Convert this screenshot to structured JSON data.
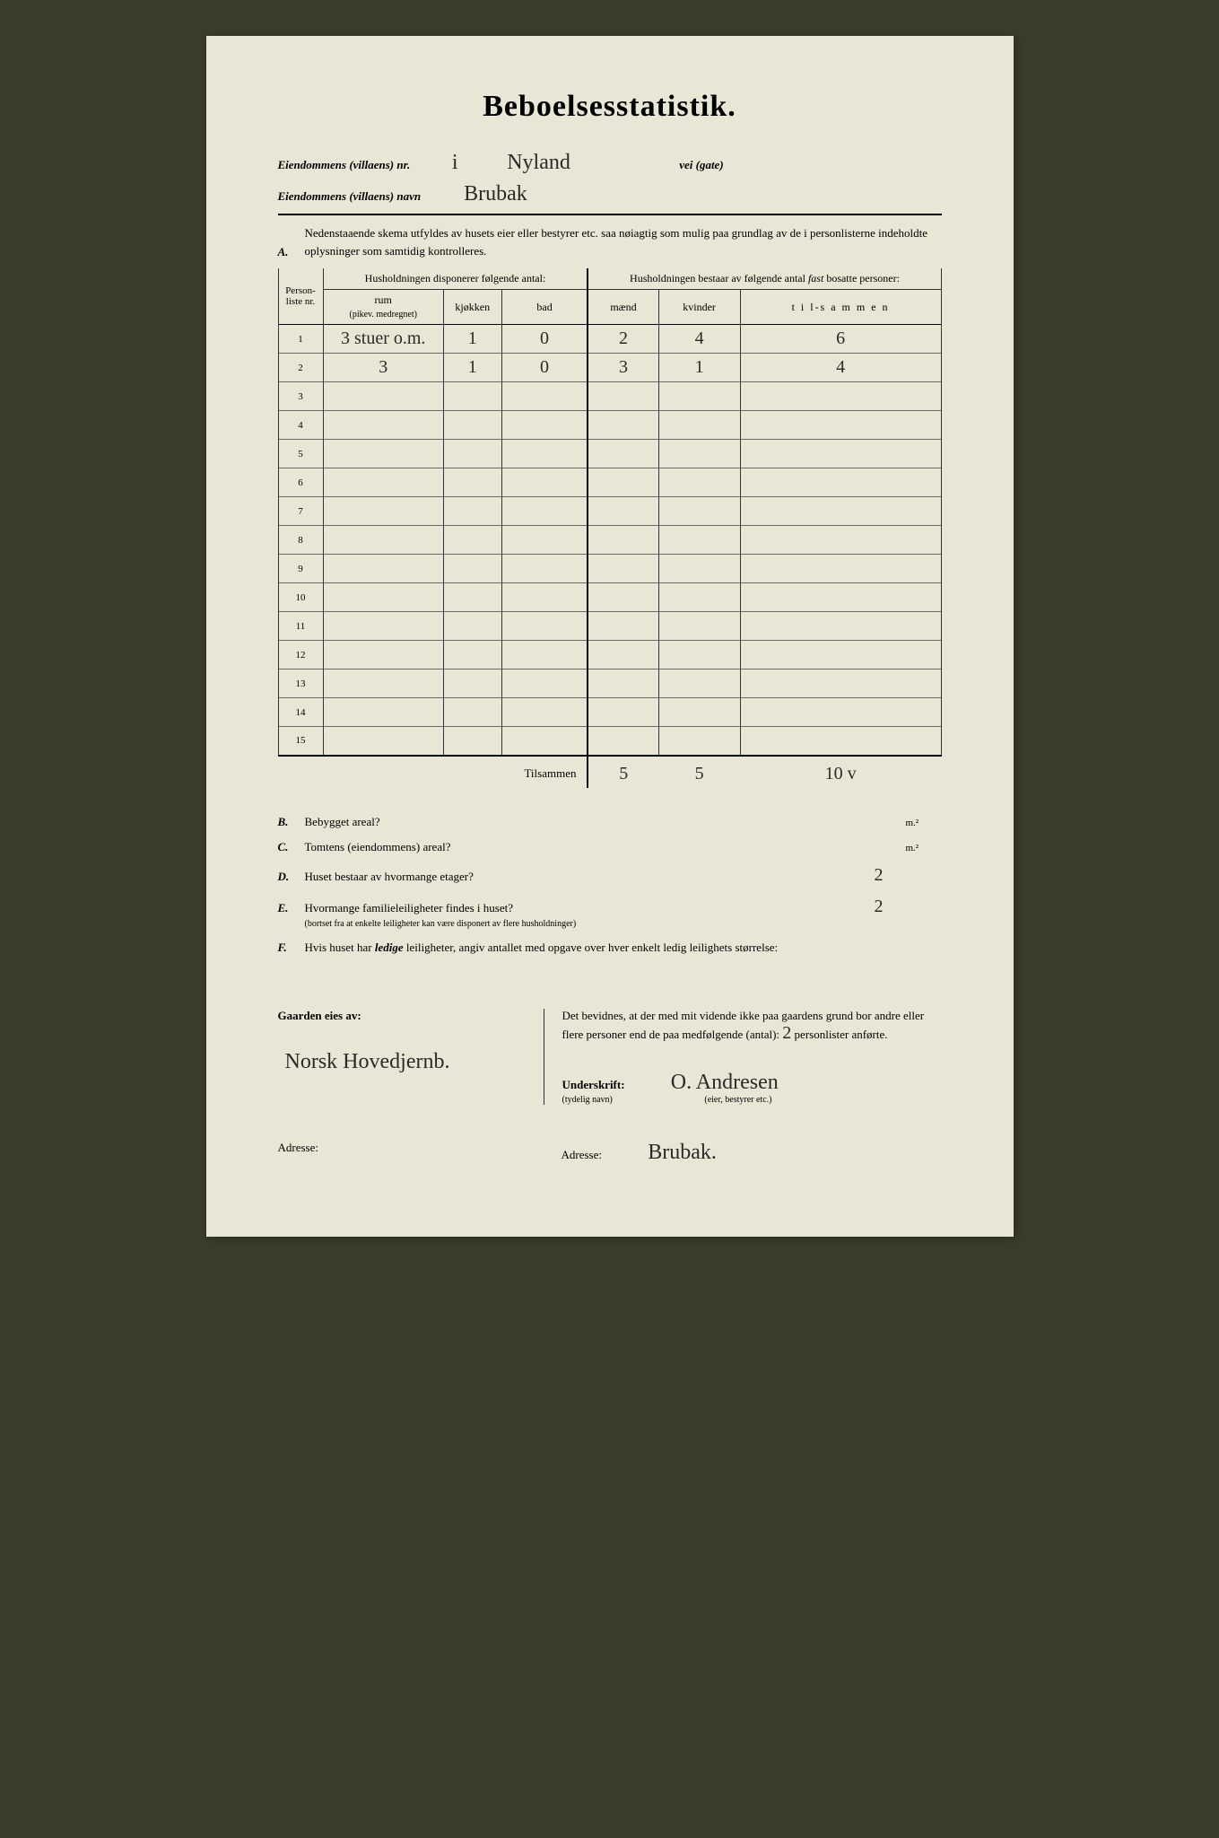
{
  "title": "Beboelsesstatistik.",
  "header": {
    "nr_label": "Eiendommens (villaens) nr.",
    "nr_val": "i",
    "street": "Nyland",
    "street_suffix": "vei (gate)",
    "navn_label": "Eiendommens (villaens) navn",
    "navn_val": "Brubak"
  },
  "section_a": {
    "letter": "A.",
    "text": "Nedenstaaende skema utfyldes av husets eier eller bestyrer etc. saa nøiagtig som mulig paa grundlag av de i personlisterne indeholdte oplysninger som samtidig kontrolleres."
  },
  "table": {
    "col_personliste": "Person-liste nr.",
    "group_left": "Husholdningen disponerer følgende antal:",
    "group_right": "Husholdningen bestaar av følgende antal fast bosatte personer:",
    "col_rum": "rum",
    "col_rum_sub": "(pikev. medregnet)",
    "col_kjokken": "kjøkken",
    "col_bad": "bad",
    "col_maend": "mænd",
    "col_kvinder": "kvinder",
    "col_tilsammen": "t i l-s a m m e n",
    "rows": [
      {
        "n": "1",
        "rum": "3 stuer o.m.",
        "kj": "1",
        "bad": "0",
        "m": "2",
        "k": "4",
        "t": "6"
      },
      {
        "n": "2",
        "rum": "3",
        "kj": "1",
        "bad": "0",
        "m": "3",
        "k": "1",
        "t": "4"
      },
      {
        "n": "3"
      },
      {
        "n": "4"
      },
      {
        "n": "5"
      },
      {
        "n": "6"
      },
      {
        "n": "7"
      },
      {
        "n": "8"
      },
      {
        "n": "9"
      },
      {
        "n": "10"
      },
      {
        "n": "11"
      },
      {
        "n": "12"
      },
      {
        "n": "13"
      },
      {
        "n": "14"
      },
      {
        "n": "15"
      }
    ],
    "tilsammen_label": "Tilsammen",
    "sum": {
      "m": "5",
      "k": "5",
      "t": "10    v"
    }
  },
  "questions": {
    "b": {
      "letter": "B.",
      "text": "Bebygget areal?",
      "unit": "m.²",
      "val": ""
    },
    "c": {
      "letter": "C.",
      "text": "Tomtens (eiendommens) areal?",
      "unit": "m.²",
      "val": ""
    },
    "d": {
      "letter": "D.",
      "text": "Huset bestaar av hvormange etager?",
      "val": "2"
    },
    "e": {
      "letter": "E.",
      "text": "Hvormange familieleiligheter findes i huset?",
      "sub": "(bortset fra at enkelte leiligheter kan være disponert av flere husholdninger)",
      "val": "2"
    },
    "f": {
      "letter": "F.",
      "text": "Hvis huset har ledige leiligheter, angiv antallet med opgave over hver enkelt ledig leilighets størrelse:"
    }
  },
  "footer": {
    "owner_label": "Gaarden eies av:",
    "owner_val": "Norsk Hovedjernb.",
    "attest_text": "Det bevidnes, at der med mit vidende ikke paa gaardens grund bor andre eller flere personer end de paa medfølgende (antal):",
    "attest_count": "2",
    "attest_suffix": "personlister anførte.",
    "underskrift_label": "Underskrift:",
    "underskrift_sub": "(tydelig navn)",
    "underskrift_val": "O. Andresen",
    "underskrift_role": "(eier, bestyrer etc.)",
    "adresse_label": "Adresse:",
    "adresse_right_val": "Brubak."
  }
}
